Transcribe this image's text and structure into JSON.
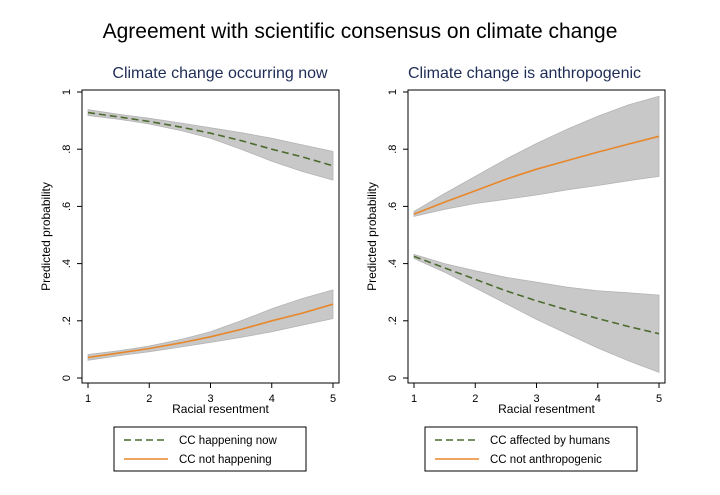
{
  "title": "Agreement with scientific consensus on climate change",
  "chart_data": [
    {
      "type": "line",
      "title": "Climate change occurring now",
      "xlabel": "Racial resentment",
      "ylabel": "Predicted probability",
      "xlim": [
        1,
        5
      ],
      "ylim": [
        0,
        1
      ],
      "xticks": [
        1,
        2,
        3,
        4,
        5
      ],
      "yticks": [
        0,
        0.2,
        0.4,
        0.6,
        0.8,
        1
      ],
      "ytick_labels": [
        "0",
        ".2",
        ".4",
        ".6",
        ".8",
        "1"
      ],
      "grid": false,
      "legend_position": "bottom",
      "x": [
        1,
        1.5,
        2,
        2.5,
        3,
        3.5,
        4,
        4.5,
        5
      ],
      "series": [
        {
          "name": "CC happening now",
          "style": "dashed",
          "color": "#4d6b2e",
          "values": [
            0.928,
            0.913,
            0.897,
            0.878,
            0.856,
            0.83,
            0.8,
            0.773,
            0.742
          ],
          "ci_lower": [
            0.918,
            0.905,
            0.888,
            0.866,
            0.838,
            0.8,
            0.758,
            0.722,
            0.692
          ],
          "ci_upper": [
            0.938,
            0.922,
            0.908,
            0.892,
            0.875,
            0.858,
            0.838,
            0.815,
            0.792
          ]
        },
        {
          "name": "CC not happening",
          "style": "solid",
          "color": "#e8872a",
          "values": [
            0.072,
            0.087,
            0.103,
            0.122,
            0.144,
            0.17,
            0.2,
            0.227,
            0.258
          ],
          "ci_lower": [
            0.062,
            0.078,
            0.092,
            0.108,
            0.125,
            0.142,
            0.162,
            0.185,
            0.208
          ],
          "ci_upper": [
            0.082,
            0.095,
            0.112,
            0.134,
            0.162,
            0.2,
            0.242,
            0.278,
            0.308
          ]
        }
      ]
    },
    {
      "type": "line",
      "title": "Climate change is anthropogenic",
      "xlabel": "Racial resentment",
      "ylabel": "Predicted probability",
      "xlim": [
        1,
        5
      ],
      "ylim": [
        0,
        1
      ],
      "xticks": [
        1,
        2,
        3,
        4,
        5
      ],
      "yticks": [
        0,
        0.2,
        0.4,
        0.6,
        0.8,
        1
      ],
      "ytick_labels": [
        "0",
        ".2",
        ".4",
        ".6",
        ".8",
        "1"
      ],
      "grid": false,
      "legend_position": "bottom",
      "x": [
        1,
        1.5,
        2,
        2.5,
        3,
        3.5,
        4,
        4.5,
        5
      ],
      "series": [
        {
          "name": "CC affected by humans",
          "style": "dashed",
          "color": "#4d6b2e",
          "values": [
            0.425,
            0.385,
            0.345,
            0.305,
            0.27,
            0.238,
            0.208,
            0.18,
            0.155
          ],
          "ci_lower": [
            0.418,
            0.37,
            0.315,
            0.26,
            0.205,
            0.155,
            0.105,
            0.06,
            0.02
          ],
          "ci_upper": [
            0.432,
            0.4,
            0.375,
            0.352,
            0.335,
            0.318,
            0.305,
            0.298,
            0.29
          ]
        },
        {
          "name": "CC not anthropogenic",
          "style": "solid",
          "color": "#e8872a",
          "values": [
            0.573,
            0.615,
            0.655,
            0.695,
            0.73,
            0.76,
            0.79,
            0.818,
            0.845
          ],
          "ci_lower": [
            0.565,
            0.59,
            0.61,
            0.625,
            0.64,
            0.658,
            0.673,
            0.69,
            0.705
          ],
          "ci_upper": [
            0.582,
            0.645,
            0.705,
            0.765,
            0.82,
            0.87,
            0.915,
            0.955,
            0.985
          ]
        }
      ]
    }
  ]
}
